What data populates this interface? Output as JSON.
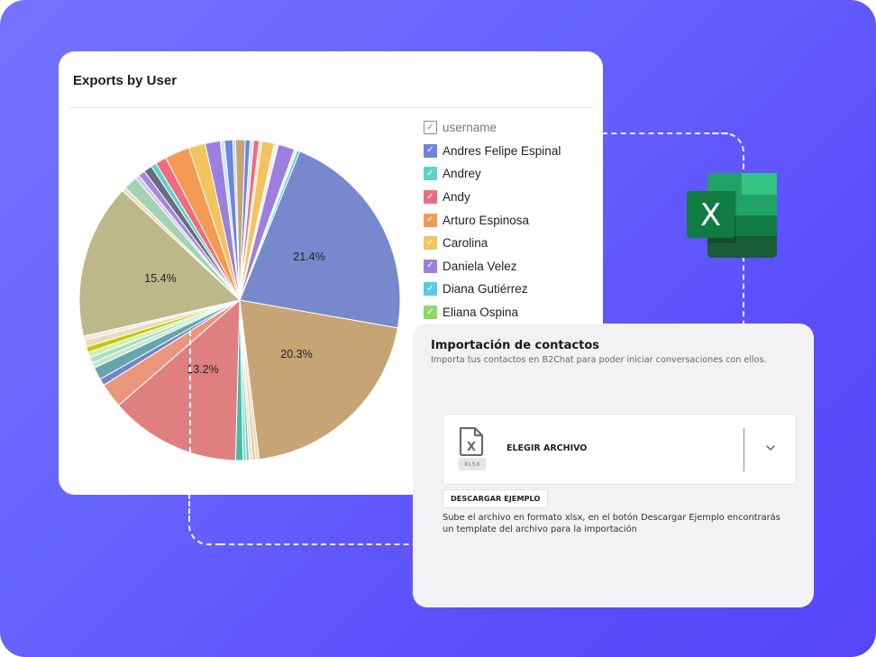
{
  "chart_card": {
    "title": "Exports by User",
    "legend": {
      "header": "username",
      "items": [
        {
          "label": "Andres Felipe Espinal",
          "color": "#6d84e0"
        },
        {
          "label": "Andrey",
          "color": "#5ad3c4"
        },
        {
          "label": "Andy",
          "color": "#ee6c7f"
        },
        {
          "label": "Arturo Espinosa",
          "color": "#f29a52"
        },
        {
          "label": "Carolina",
          "color": "#f3c45d"
        },
        {
          "label": "Daniela Velez",
          "color": "#9d7fe0"
        },
        {
          "label": "Diana Gutiérrez",
          "color": "#5bc8e8"
        },
        {
          "label": "Eliana Ospina",
          "color": "#8ed86a"
        }
      ]
    },
    "check_glyph": "✓"
  },
  "chart_data": {
    "type": "pie",
    "title": "Exports by User",
    "legend_title": "username",
    "legend_position": "right",
    "labeled_slices": [
      {
        "label": "21.4%",
        "value": 21.4,
        "color": "#7789cc"
      },
      {
        "label": "20.3%",
        "value": 20.3,
        "color": "#c6a474"
      },
      {
        "label": "13.2%",
        "value": 13.2,
        "color": "#e07f80"
      },
      {
        "label": "15.4%",
        "value": 15.4,
        "color": "#bcb88a"
      }
    ],
    "slices": [
      {
        "start": 22,
        "end": 100,
        "color": "#7789cc",
        "label": "21.4%"
      },
      {
        "start": 100,
        "end": 173,
        "color": "#c6a474",
        "label": "20.3%"
      },
      {
        "start": 173,
        "end": 174.2,
        "color": "#f0d8a8"
      },
      {
        "start": 174.2,
        "end": 175.4,
        "color": "#e0c8b8"
      },
      {
        "start": 175.4,
        "end": 176.6,
        "color": "#f8e4b0"
      },
      {
        "start": 176.6,
        "end": 177.6,
        "color": "#5bc8e8"
      },
      {
        "start": 177.6,
        "end": 178.8,
        "color": "#8fd8c8"
      },
      {
        "start": 178.8,
        "end": 181.5,
        "color": "#49b9a4"
      },
      {
        "start": 181.5,
        "end": 229,
        "color": "#e07f80",
        "label": "13.2%"
      },
      {
        "start": 229,
        "end": 238,
        "color": "#e9967c"
      },
      {
        "start": 238,
        "end": 240.5,
        "color": "#6f86c8"
      },
      {
        "start": 240.5,
        "end": 245,
        "color": "#63a6ac"
      },
      {
        "start": 245,
        "end": 247,
        "color": "#c4e8d0"
      },
      {
        "start": 247,
        "end": 249,
        "color": "#a8e0c0"
      },
      {
        "start": 249,
        "end": 251,
        "color": "#d4f0b0"
      },
      {
        "start": 251,
        "end": 253,
        "color": "#c8c800"
      },
      {
        "start": 253,
        "end": 255.5,
        "color": "#e6ddc2"
      },
      {
        "start": 255.5,
        "end": 257,
        "color": "#f0ead8"
      },
      {
        "start": 257,
        "end": 313,
        "color": "#bcb88a",
        "label": "15.4%"
      },
      {
        "start": 313,
        "end": 314.5,
        "color": "#e8e0c0"
      },
      {
        "start": 314.5,
        "end": 319.5,
        "color": "#a2d4b4"
      },
      {
        "start": 319.5,
        "end": 321,
        "color": "#d0c8f0"
      },
      {
        "start": 321,
        "end": 323.5,
        "color": "#a48ad8"
      },
      {
        "start": 323.5,
        "end": 326.5,
        "color": "#6a6a80"
      },
      {
        "start": 326.5,
        "end": 328.5,
        "color": "#5ad3c4"
      },
      {
        "start": 328.5,
        "end": 332.5,
        "color": "#ee6c7f"
      },
      {
        "start": 332.5,
        "end": 341.5,
        "color": "#f29a52"
      },
      {
        "start": 341.5,
        "end": 347.5,
        "color": "#f3c45d"
      },
      {
        "start": 347.5,
        "end": 353,
        "color": "#9d7fe0"
      },
      {
        "start": 353,
        "end": 354.5,
        "color": "#c8e8f8"
      },
      {
        "start": 354.5,
        "end": 357.5,
        "color": "#6d84e0"
      },
      {
        "start": 357.5,
        "end": 358.5,
        "color": "#b8d8f0"
      },
      {
        "start": 358.5,
        "end": 362,
        "color": "#c6a474"
      },
      {
        "start": 362,
        "end": 363.8,
        "color": "#6d84e0"
      },
      {
        "start": 363.8,
        "end": 365,
        "color": "#c8e8f8"
      },
      {
        "start": 365,
        "end": 367,
        "color": "#ee6c7f"
      },
      {
        "start": 367,
        "end": 368,
        "color": "#f8e4b0"
      },
      {
        "start": 368,
        "end": 372.5,
        "color": "#f3c45d"
      },
      {
        "start": 372.5,
        "end": 374,
        "color": "#f0f0f0"
      },
      {
        "start": 374,
        "end": 380,
        "color": "#9d7fe0"
      },
      {
        "start": 380,
        "end": 381,
        "color": "#e0f4fa"
      },
      {
        "start": 381,
        "end": 382,
        "color": "#5bc8e8"
      }
    ]
  },
  "import_card": {
    "title": "Importación de contactos",
    "description": "Importa tus contactos en B2Chat para poder iniciar conversaciones con ellos.",
    "file_type_tag": "XLSX",
    "file_icon_letter": "X",
    "choose_file_label": "ELEGIR ARCHIVO",
    "download_example_label": "DESCARGAR EJEMPLO",
    "help_text": "Sube el archivo en formato xlsx, en el botón Descargar Ejemplo encontrarás un template del archivo para la importación"
  },
  "excel_logo": {
    "letter": "X"
  },
  "colors": {
    "background_start": "#7473ff",
    "background_end": "#5545f8",
    "excel_green": "#1d7044"
  }
}
